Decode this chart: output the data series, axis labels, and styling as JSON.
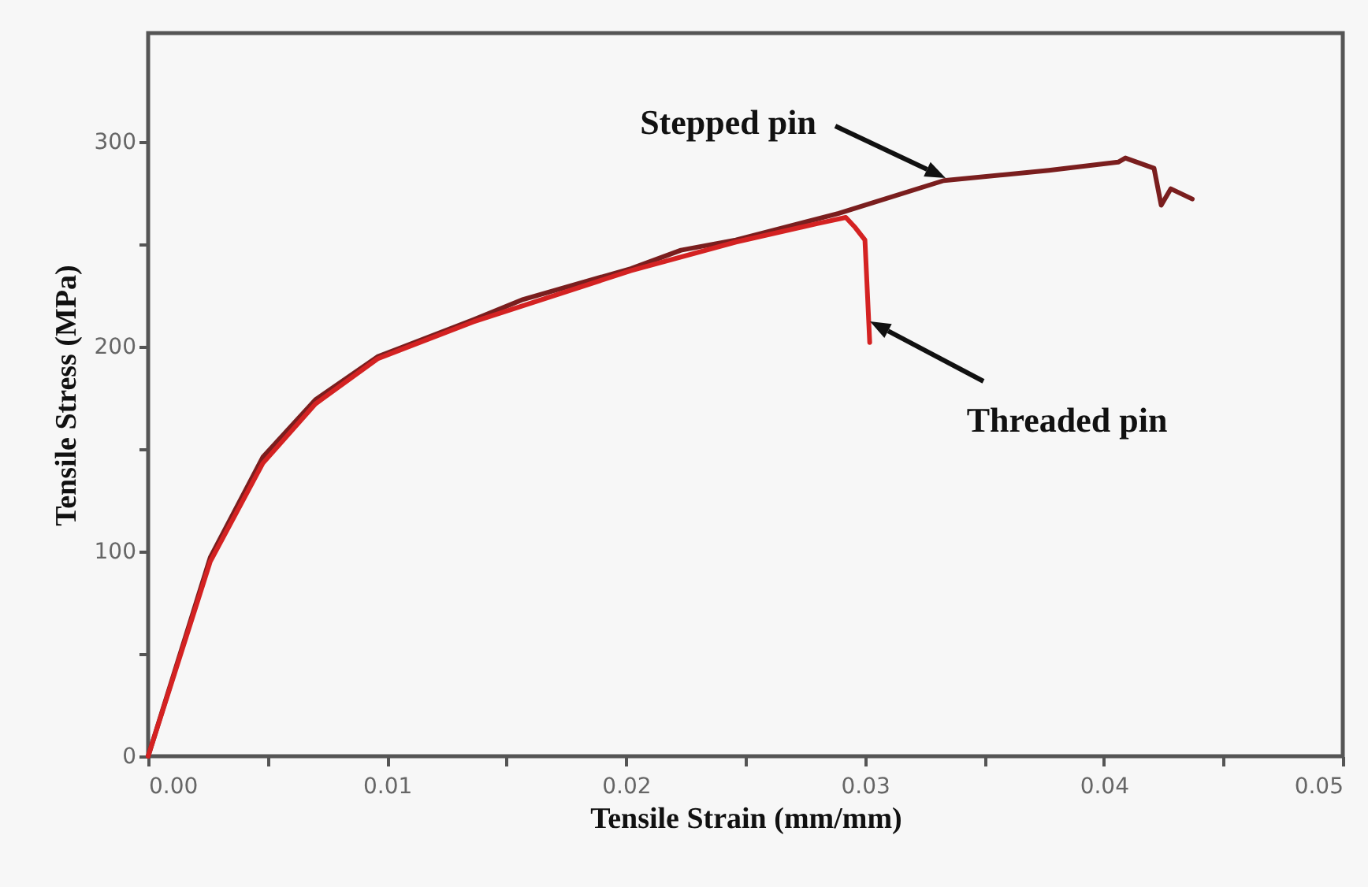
{
  "chart_data": {
    "type": "line",
    "xlabel": "Tensile Strain (mm/mm)",
    "ylabel": "Tensile Stress (MPa)",
    "xlim": [
      0,
      0.05
    ],
    "ylim": [
      0,
      353
    ],
    "xticks": [
      {
        "value": 0,
        "label": "0.00"
      },
      {
        "value": 0.005,
        "label": null
      },
      {
        "value": 0.01,
        "label": "0.01"
      },
      {
        "value": 0.015,
        "label": null
      },
      {
        "value": 0.02,
        "label": "0.02"
      },
      {
        "value": 0.025,
        "label": null
      },
      {
        "value": 0.03,
        "label": "0.03"
      },
      {
        "value": 0.035,
        "label": null
      },
      {
        "value": 0.04,
        "label": "0.04"
      },
      {
        "value": 0.045,
        "label": null
      },
      {
        "value": 0.05,
        "label": "0.05"
      }
    ],
    "yticks": [
      0,
      {
        "value": 50,
        "label": null
      },
      100,
      {
        "value": 150,
        "label": null
      },
      200,
      {
        "value": 250,
        "label": null
      },
      300
    ],
    "grid": false,
    "legend": false,
    "marker": "none",
    "line_style": "solid",
    "series": [
      {
        "color": "#7a1e1e",
        "x": [
          0,
          0.0026,
          0.0048,
          0.007,
          0.0096,
          0.0136,
          0.0157,
          0.0202,
          0.0223,
          0.0246,
          0.0289,
          0.0333,
          0.0377,
          0.0406,
          0.0409,
          0.0421,
          0.0424,
          0.0428,
          0.0437
        ],
        "values": [
          0,
          97,
          146,
          174,
          195,
          213,
          223,
          238,
          247,
          252,
          265,
          281,
          286,
          290,
          292,
          287,
          269,
          277,
          272
        ]
      },
      {
        "color": "#d42222",
        "x": [
          0,
          0.0026,
          0.0048,
          0.007,
          0.0096,
          0.0136,
          0.0202,
          0.0246,
          0.028,
          0.0292,
          0.0296,
          0.03,
          0.0302
        ],
        "values": [
          0,
          95,
          143,
          172,
          194,
          212,
          237,
          251,
          260,
          263,
          258,
          252,
          202
        ]
      }
    ],
    "annotations": [
      "Stepped pin",
      "Threaded pin"
    ]
  }
}
